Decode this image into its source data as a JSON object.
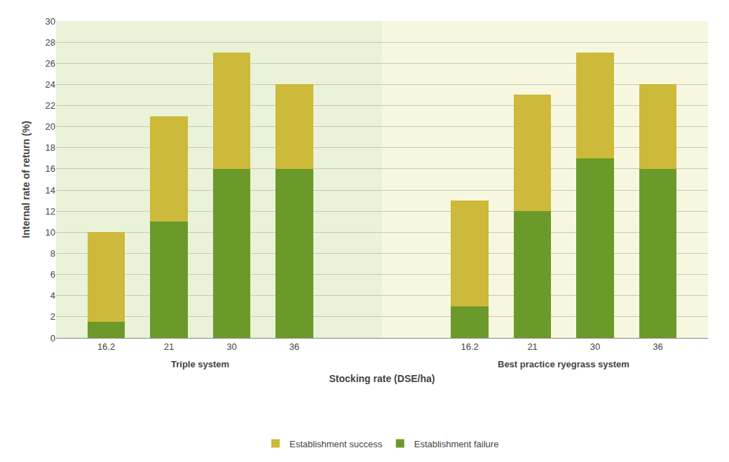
{
  "chart_data": {
    "type": "bar",
    "stacked": true,
    "xlabel": "Stocking rate (DSE/ha)",
    "ylabel": "Internal rate of return (%)",
    "groups": [
      {
        "name": "Triple system",
        "color": "#eaf2d7",
        "categories": [
          "16.2",
          "21",
          "30",
          "36"
        ]
      },
      {
        "name": "Best practice ryegrass system",
        "color": "#f7f7e0",
        "categories": [
          "16.2",
          "21",
          "30",
          "36"
        ]
      }
    ],
    "series": [
      {
        "name": "Establishment failure",
        "color": "#6b9a2a",
        "values": [
          1.5,
          11.0,
          16.0,
          16.0,
          3.0,
          12.0,
          17.0,
          16.0
        ]
      },
      {
        "name": "Establishment success",
        "color": "#cdb93a",
        "values": [
          8.5,
          10.0,
          11.0,
          8.0,
          10.0,
          11.0,
          10.0,
          8.0
        ]
      }
    ],
    "ylim": [
      0,
      30
    ],
    "yticks": [
      0,
      2,
      4,
      6,
      8,
      10,
      12,
      14,
      16,
      18,
      20,
      22,
      24,
      26,
      28,
      30
    ],
    "grid": true,
    "legend": "bottom"
  }
}
